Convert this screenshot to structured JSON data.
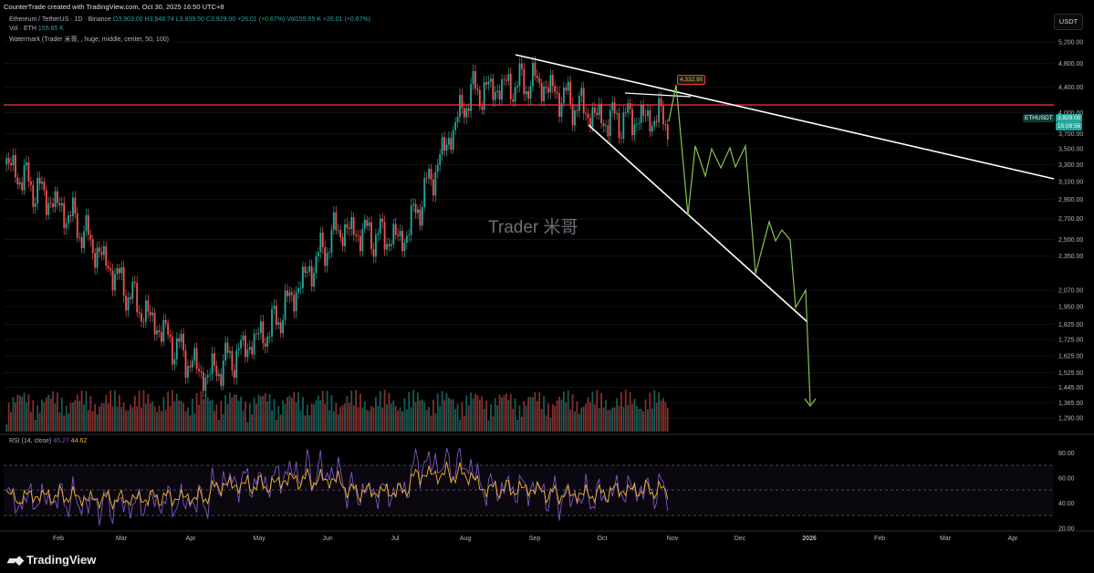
{
  "header": {
    "credit": "CounterTrade created with TradingView.com, Oct 30, 2025 16:50 UTC+8"
  },
  "legend": {
    "symbol": "Ethereum / TetherUS · 1D · Binance",
    "ohlc": "O3,903.00 H3,948.74 L3,839.50 C3,929.00 +26.01 (+0.67%)",
    "vol_symbol": "Vol155.65 K +26.01 (+0.67%)",
    "vol_label": "Vol · ETH",
    "vol_value": "155.65 K",
    "watermark_study": "Watermark (Trader 米哥, , huge, middle, center, 50, 100)"
  },
  "rsi": {
    "label": "RSI (14, close)",
    "value": "45.27",
    "ma": "44.62"
  },
  "currency": "USDT",
  "watermark_text": "Trader 米哥",
  "price_labels": {
    "ticker": "ETHUSDT",
    "last": "3,929.00",
    "countdown": "15:09:56",
    "target": "4,332.90"
  },
  "brand": "TradingView",
  "colors": {
    "up": "#26a69a",
    "down": "#ef5350",
    "projection": "#8bc34a",
    "hline": "#f23645",
    "rsi": "#7e57c2",
    "rsi_ma": "#f0b429"
  },
  "chart_data": {
    "type": "candlestick",
    "x_axis": [
      "Feb",
      "Mar",
      "Apr",
      "May",
      "Jun",
      "Jul",
      "Aug",
      "Sep",
      "Oct",
      "Nov",
      "Dec",
      "2026",
      "Feb",
      "Mar",
      "Apr"
    ],
    "y_axis": [
      "5,200.00",
      "4,800.00",
      "4,400.00",
      "4,000.00",
      "3,700.00",
      "3,500.00",
      "3,300.00",
      "3,100.00",
      "2,900.00",
      "2,700.00",
      "2,500.00",
      "2,350.00",
      "2,070.00",
      "1,950.00",
      "1,825.00",
      "1,725.00",
      "1,625.00",
      "1,525.00",
      "1,445.00",
      "1,365.00",
      "1,290.00"
    ],
    "rsi_axis": [
      "80.00",
      "60.00",
      "40.00",
      "20.00"
    ],
    "log_scale": true,
    "key_prices": [
      {
        "month": "Jan",
        "price": 3300
      },
      {
        "month": "Feb",
        "price": 2700
      },
      {
        "month": "Mar",
        "price": 1950
      },
      {
        "month": "Apr",
        "price": 1500
      },
      {
        "month": "May",
        "price": 1800
      },
      {
        "month": "Jun",
        "price": 2600
      },
      {
        "month": "Jul",
        "price": 2500
      },
      {
        "month": "Aug",
        "price": 4300
      },
      {
        "month": "Sep",
        "price": 4500
      },
      {
        "month": "Oct",
        "price": 3900
      },
      {
        "month": "Nov",
        "price": 3929
      }
    ],
    "horizontal_line": 4100,
    "projection": [
      {
        "t": "Nov",
        "price": 4332.9
      },
      {
        "t": "Nov",
        "price": 2700
      },
      {
        "t": "Nov",
        "price": 3500
      },
      {
        "t": "Dec",
        "price": 2200
      },
      {
        "t": "Dec",
        "price": 2700
      },
      {
        "t": "Dec",
        "price": 1850
      },
      {
        "t": "2026",
        "price": 2070
      },
      {
        "t": "2026",
        "price": 1340
      }
    ]
  }
}
